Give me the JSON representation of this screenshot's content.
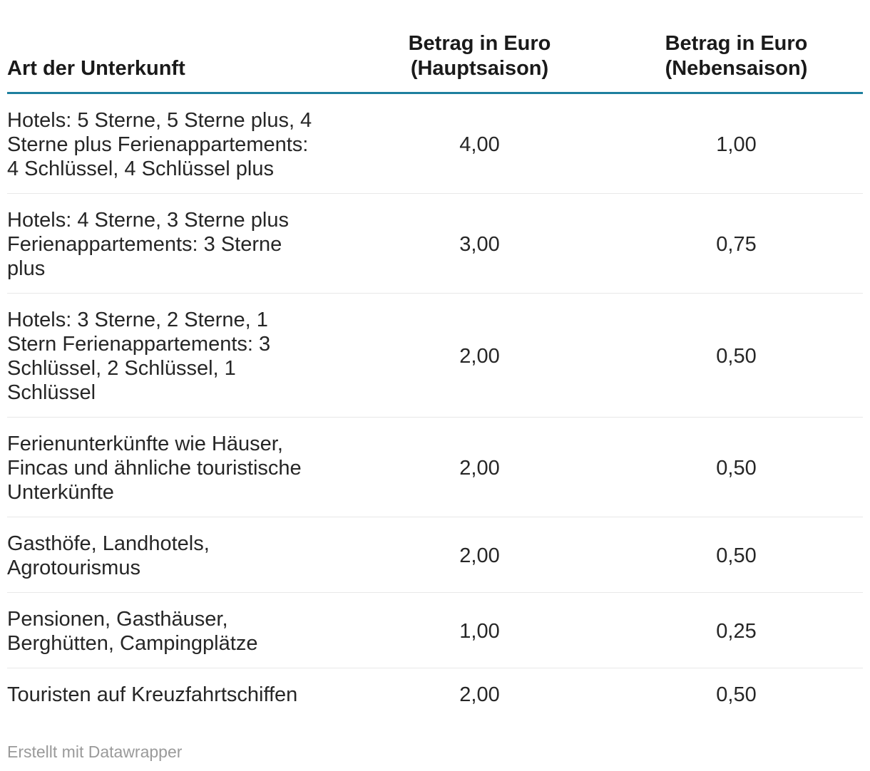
{
  "accent_color": "#1d7f9e",
  "divider_color": "#e8e8e8",
  "header": {
    "col_type": "Art der Unterkunft",
    "col_haupt": "Betrag in Euro\n(Hauptsaison)",
    "col_neben": "Betrag in Euro\n(Nebensaison)"
  },
  "rows": [
    {
      "type": "Hotels: 5 Sterne, 5 Sterne plus, 4\nSterne plus Ferienappartements:\n4 Schlüssel, 4 Schlüssel plus",
      "hauptsaison": "4,00",
      "nebensaison": "1,00"
    },
    {
      "type": "Hotels: 4 Sterne, 3 Sterne plus\nFerienappartements: 3 Sterne\nplus",
      "hauptsaison": "3,00",
      "nebensaison": "0,75"
    },
    {
      "type": "Hotels: 3 Sterne, 2 Sterne, 1\nStern Ferienappartements: 3\nSchlüssel, 2 Schlüssel, 1\nSchlüssel",
      "hauptsaison": "2,00",
      "nebensaison": "0,50"
    },
    {
      "type": "Ferienunterkünfte wie Häuser,\nFincas und ähnliche touristische\nUnterkünfte",
      "hauptsaison": "2,00",
      "nebensaison": "0,50"
    },
    {
      "type": "Gasthöfe, Landhotels,\nAgrotourismus",
      "hauptsaison": "2,00",
      "nebensaison": "0,50"
    },
    {
      "type": "Pensionen, Gasthäuser,\nBerghütten, Campingplätze",
      "hauptsaison": "1,00",
      "nebensaison": "0,25"
    },
    {
      "type": "Touristen auf Kreuzfahrtschiffen",
      "hauptsaison": "2,00",
      "nebensaison": "0,50"
    }
  ],
  "footer": {
    "attribution": "Erstellt mit Datawrapper"
  },
  "chart_data": {
    "type": "table",
    "columns": [
      "Art der Unterkunft",
      "Betrag in Euro (Hauptsaison)",
      "Betrag in Euro (Nebensaison)"
    ],
    "rows": [
      [
        "Hotels: 5 Sterne, 5 Sterne plus, 4 Sterne plus Ferienappartements: 4 Schlüssel, 4 Schlüssel plus",
        "4,00",
        "1,00"
      ],
      [
        "Hotels: 4 Sterne, 3 Sterne plus Ferienappartements: 3 Sterne plus",
        "3,00",
        "0,75"
      ],
      [
        "Hotels: 3 Sterne, 2 Sterne, 1 Stern Ferienappartements: 3 Schlüssel, 2 Schlüssel, 1 Schlüssel",
        "2,00",
        "0,50"
      ],
      [
        "Ferienunterkünfte wie Häuser, Fincas und ähnliche touristische Unterkünfte",
        "2,00",
        "0,50"
      ],
      [
        "Gasthöfe, Landhotels, Agrotourismus",
        "2,00",
        "0,50"
      ],
      [
        "Pensionen, Gasthäuser, Berghütten, Campingplätze",
        "1,00",
        "0,25"
      ],
      [
        "Touristen auf Kreuzfahrtschiffen",
        "2,00",
        "0,50"
      ]
    ],
    "attribution": "Erstellt mit Datawrapper"
  }
}
